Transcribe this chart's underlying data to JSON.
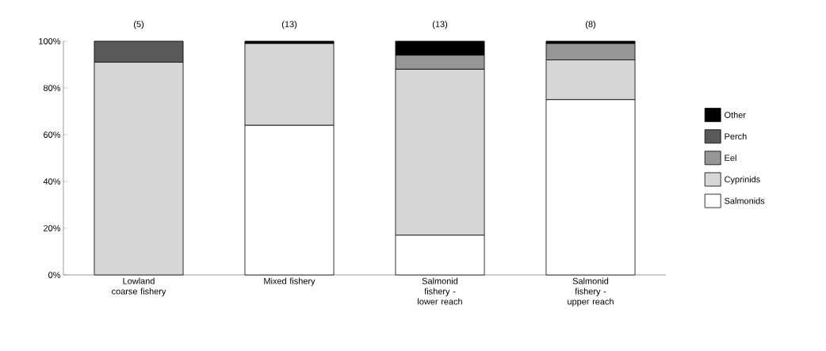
{
  "chart_data": {
    "type": "bar",
    "stacked": true,
    "categories": [
      "Lowland coarse fishery",
      "Mixed fishery",
      "Salmonid fishery - lower reach",
      "Salmonid fishery - upper reach"
    ],
    "series": [
      {
        "name": "Salmonids",
        "color": "#ffffff",
        "values": [
          0,
          64,
          17,
          75
        ]
      },
      {
        "name": "Cyprinids",
        "color": "#d6d6d6",
        "values": [
          91,
          35,
          71,
          17
        ]
      },
      {
        "name": "Eel",
        "color": "#969696",
        "values": [
          0,
          0,
          6,
          7
        ]
      },
      {
        "name": "Perch",
        "color": "#595959",
        "values": [
          9,
          0,
          0,
          0
        ]
      },
      {
        "name": "Other",
        "color": "#000000",
        "values": [
          0,
          1,
          6,
          1
        ]
      }
    ],
    "ylim": [
      0,
      100
    ],
    "yticks": [
      {
        "value": 0,
        "label": "0%"
      },
      {
        "value": 20,
        "label": "20%"
      },
      {
        "value": 40,
        "label": "40%"
      },
      {
        "value": 60,
        "label": "60%"
      },
      {
        "value": 80,
        "label": "80%"
      },
      {
        "value": 100,
        "label": "100%"
      }
    ],
    "annotations": [
      "(5)",
      "(13)",
      "(13)",
      "(8)"
    ],
    "legend": "right",
    "grid": false
  }
}
